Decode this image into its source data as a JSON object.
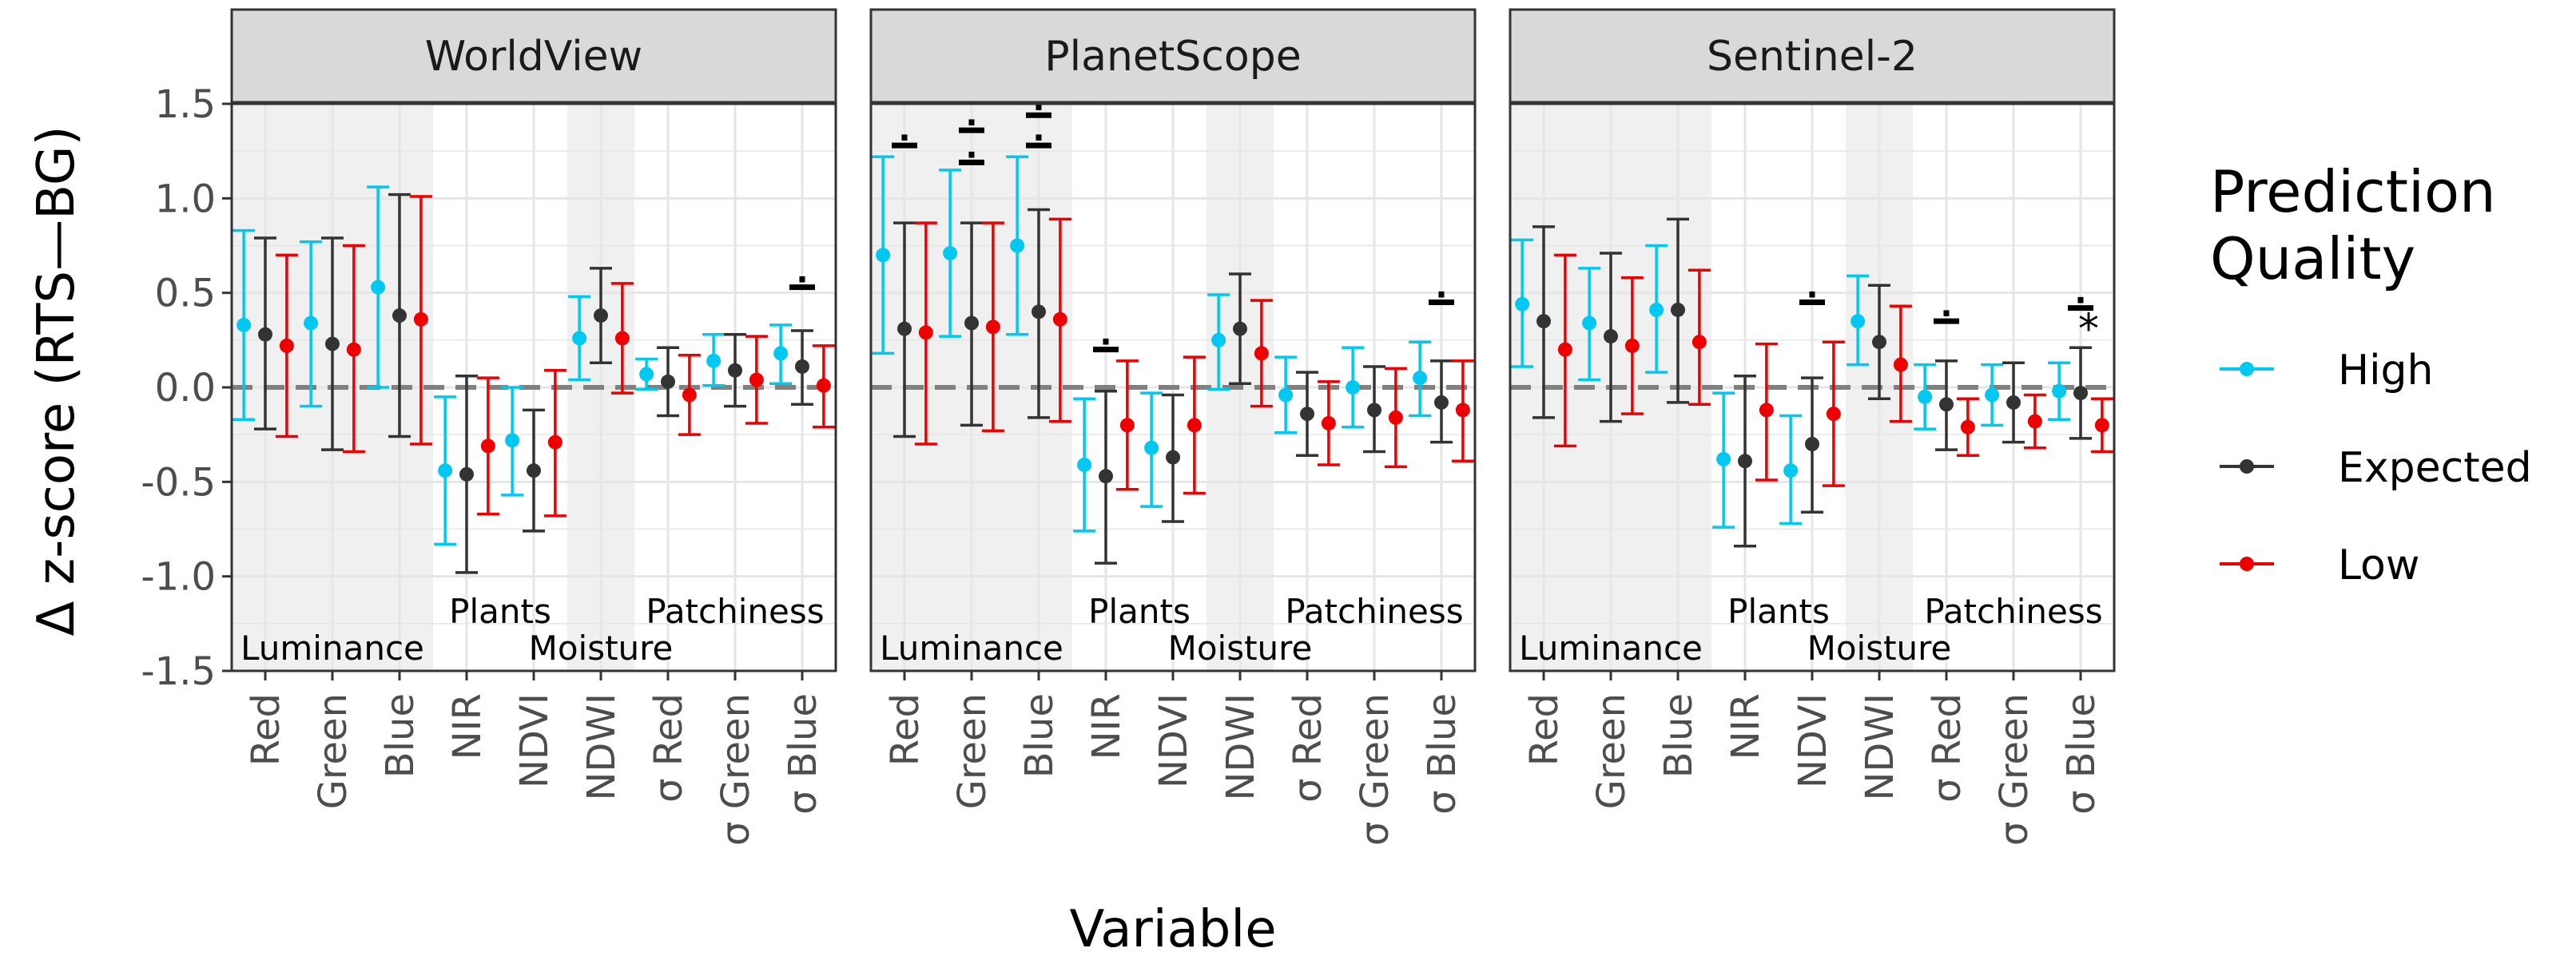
{
  "chart_data": {
    "type": "scatter",
    "subtype": "point-range faceted",
    "title": "",
    "xlabel": "Variable",
    "ylabel": "Δ z-score (RTS—BG)",
    "ylim": [
      -1.5,
      1.5
    ],
    "yticks": [
      -1.5,
      -1.0,
      -0.5,
      0.0,
      0.5,
      1.0,
      1.5
    ],
    "ytick_labels": [
      "-1.5",
      "-1.0",
      "-0.5",
      "0.0",
      "0.5",
      "1.0",
      "1.5"
    ],
    "categories": [
      "Red",
      "Green",
      "Blue",
      "NIR",
      "NDVI",
      "NDWI",
      "σ Red",
      "σ Green",
      "σ Blue"
    ],
    "reference_line": 0,
    "groups": [
      {
        "label": "Luminance",
        "from": 0,
        "to": 2,
        "shaded": true
      },
      {
        "label": "Plants",
        "from": 3,
        "to": 4,
        "shaded": false
      },
      {
        "label": "Moisture",
        "from": 5,
        "to": 5,
        "shaded": true
      },
      {
        "label": "Patchiness",
        "from": 6,
        "to": 8,
        "shaded": false
      }
    ],
    "legend": {
      "title": "Prediction Quality",
      "entries": [
        {
          "name": "High",
          "color": "#00c8f0"
        },
        {
          "name": "Expected",
          "color": "#333333"
        },
        {
          "name": "Low",
          "color": "#ee0000"
        }
      ]
    },
    "panels": [
      {
        "name": "WorldView",
        "series": [
          {
            "name": "High",
            "mean": [
              0.33,
              0.34,
              0.53,
              -0.44,
              -0.28,
              0.26,
              0.07,
              0.14,
              0.18
            ],
            "lower": [
              -0.17,
              -0.1,
              0.0,
              -0.83,
              -0.57,
              0.04,
              -0.01,
              0.01,
              0.02
            ],
            "upper": [
              0.83,
              0.77,
              1.06,
              -0.05,
              0.0,
              0.48,
              0.15,
              0.28,
              0.33
            ]
          },
          {
            "name": "Expected",
            "mean": [
              0.28,
              0.23,
              0.38,
              -0.46,
              -0.44,
              0.38,
              0.03,
              0.09,
              0.11
            ],
            "lower": [
              -0.22,
              -0.33,
              -0.26,
              -0.98,
              -0.76,
              0.13,
              -0.15,
              -0.1,
              -0.09
            ],
            "upper": [
              0.79,
              0.79,
              1.02,
              0.06,
              -0.12,
              0.63,
              0.21,
              0.28,
              0.3
            ]
          },
          {
            "name": "Low",
            "mean": [
              0.22,
              0.2,
              0.36,
              -0.31,
              -0.29,
              0.26,
              -0.04,
              0.04,
              0.01
            ],
            "lower": [
              -0.26,
              -0.34,
              -0.3,
              -0.67,
              -0.68,
              -0.03,
              -0.25,
              -0.19,
              -0.21
            ],
            "upper": [
              0.7,
              0.75,
              1.01,
              0.05,
              0.09,
              0.55,
              0.17,
              0.27,
              0.22
            ]
          }
        ],
        "annotations": [
          {
            "category": "σ Blue",
            "value": 0.53,
            "text": "."
          }
        ]
      },
      {
        "name": "PlanetScope",
        "series": [
          {
            "name": "High",
            "mean": [
              0.7,
              0.71,
              0.75,
              -0.41,
              -0.32,
              0.25,
              -0.04,
              0.0,
              0.05
            ],
            "lower": [
              0.18,
              0.27,
              0.28,
              -0.76,
              -0.63,
              -0.01,
              -0.24,
              -0.21,
              -0.15
            ],
            "upper": [
              1.22,
              1.15,
              1.22,
              -0.06,
              -0.03,
              0.49,
              0.16,
              0.21,
              0.24
            ]
          },
          {
            "name": "Expected",
            "mean": [
              0.31,
              0.34,
              0.4,
              -0.47,
              -0.37,
              0.31,
              -0.14,
              -0.12,
              -0.08
            ],
            "lower": [
              -0.26,
              -0.2,
              -0.16,
              -0.93,
              -0.71,
              0.02,
              -0.36,
              -0.34,
              -0.29
            ],
            "upper": [
              0.87,
              0.87,
              0.94,
              -0.02,
              -0.04,
              0.6,
              0.08,
              0.11,
              0.14
            ]
          },
          {
            "name": "Low",
            "mean": [
              0.29,
              0.32,
              0.36,
              -0.2,
              -0.2,
              0.18,
              -0.19,
              -0.16,
              -0.12
            ],
            "lower": [
              -0.3,
              -0.23,
              -0.18,
              -0.54,
              -0.56,
              -0.1,
              -0.41,
              -0.42,
              -0.39
            ],
            "upper": [
              0.87,
              0.87,
              0.89,
              0.14,
              0.16,
              0.46,
              0.03,
              0.1,
              0.14
            ]
          }
        ],
        "annotations": [
          {
            "category": "Red",
            "value": 1.28,
            "text": "."
          },
          {
            "category": "Green",
            "value": 1.19,
            "text": "."
          },
          {
            "category": "Green",
            "value": 1.36,
            "text": "."
          },
          {
            "category": "Blue",
            "value": 1.28,
            "text": "."
          },
          {
            "category": "Blue",
            "value": 1.44,
            "text": "."
          },
          {
            "category": "NIR",
            "value": 0.2,
            "text": "."
          },
          {
            "category": "σ Blue",
            "value": 0.45,
            "text": "."
          }
        ]
      },
      {
        "name": "Sentinel-2",
        "series": [
          {
            "name": "High",
            "mean": [
              0.44,
              0.34,
              0.41,
              -0.38,
              -0.44,
              0.35,
              -0.05,
              -0.04,
              -0.02
            ],
            "lower": [
              0.11,
              0.04,
              0.08,
              -0.74,
              -0.72,
              0.12,
              -0.22,
              -0.2,
              -0.17
            ],
            "upper": [
              0.78,
              0.63,
              0.75,
              -0.03,
              -0.15,
              0.59,
              0.12,
              0.12,
              0.13
            ]
          },
          {
            "name": "Expected",
            "mean": [
              0.35,
              0.27,
              0.41,
              -0.39,
              -0.3,
              0.24,
              -0.09,
              -0.08,
              -0.03
            ],
            "lower": [
              -0.16,
              -0.18,
              -0.08,
              -0.84,
              -0.66,
              -0.06,
              -0.33,
              -0.29,
              -0.27
            ],
            "upper": [
              0.85,
              0.71,
              0.89,
              0.06,
              0.05,
              0.54,
              0.14,
              0.13,
              0.21
            ]
          },
          {
            "name": "Low",
            "mean": [
              0.2,
              0.22,
              0.24,
              -0.12,
              -0.14,
              0.12,
              -0.21,
              -0.18,
              -0.2
            ],
            "lower": [
              -0.31,
              -0.14,
              -0.09,
              -0.49,
              -0.52,
              -0.18,
              -0.36,
              -0.32,
              -0.34
            ],
            "upper": [
              0.7,
              0.58,
              0.62,
              0.23,
              0.24,
              0.43,
              -0.06,
              -0.04,
              -0.06
            ]
          }
        ],
        "annotations": [
          {
            "category": "NDVI",
            "value": 0.45,
            "text": "."
          },
          {
            "category": "σ Red",
            "value": 0.35,
            "text": "."
          },
          {
            "category": "σ Blue",
            "value": 0.42,
            "text": "."
          },
          {
            "category": "σ Blue",
            "value": 0.31,
            "text": "*"
          }
        ]
      }
    ]
  }
}
